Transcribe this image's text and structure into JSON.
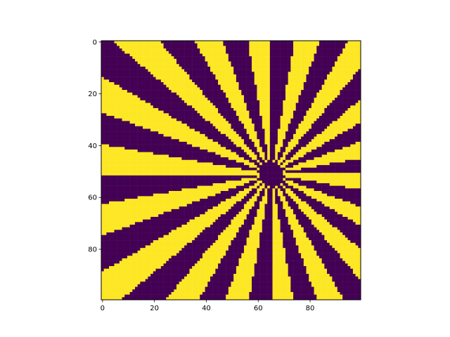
{
  "chart_data": {
    "type": "heatmap",
    "pattern": "radial-starburst",
    "grid_size": [
      100,
      100
    ],
    "center": [
      65,
      51
    ],
    "spokes": 36,
    "center_disk_radius": 4.5,
    "value_range": [
      0,
      1
    ],
    "colors": {
      "low": "#440154",
      "high": "#fde725"
    },
    "x_ticks": [
      0,
      20,
      40,
      60,
      80
    ],
    "y_ticks": [
      0,
      20,
      40,
      60,
      80
    ],
    "x_tick_labels": [
      "0",
      "20",
      "40",
      "60",
      "80"
    ],
    "y_tick_labels": [
      "0",
      "20",
      "40",
      "60",
      "80"
    ],
    "xlim": [
      -0.5,
      99.5
    ],
    "ylim": [
      99.5,
      -0.5
    ],
    "y_axis_inverted": true,
    "grid": false,
    "legend": "none"
  }
}
